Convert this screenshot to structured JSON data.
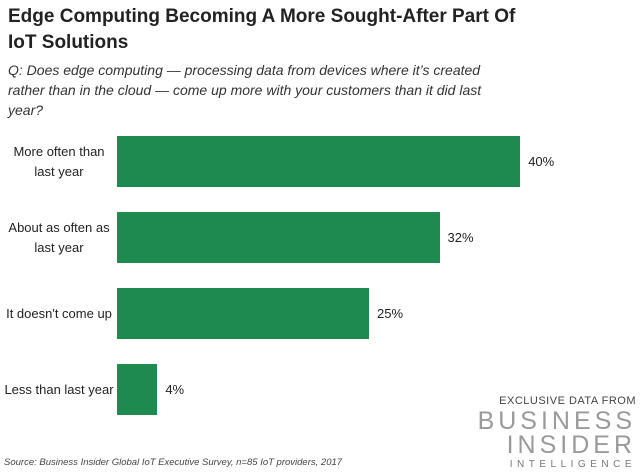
{
  "chart_data": {
    "type": "bar",
    "orientation": "horizontal",
    "title": "Edge Computing Becoming A More Sought-After Part Of IoT Solutions",
    "subtitle": "Q: Does edge computing — processing data from devices where it’s created rather than in the cloud — come up more with your customers than it did last year?",
    "categories": [
      "More often than last year",
      "About as often as last year",
      "It doesn't come up",
      "Less than last year"
    ],
    "values": [
      40,
      32,
      25,
      4
    ],
    "value_labels": [
      "40%",
      "32%",
      "25%",
      "4%"
    ],
    "color": "#1e8a4f",
    "source": "Source: Business Insider Global IoT Executive Survey, n=85 IoT providers, 2017",
    "branding": {
      "tagline": "EXCLUSIVE DATA FROM",
      "line1": "BUSINESS",
      "line2": "INSIDER",
      "line3": "INTELLIGENCE"
    }
  }
}
